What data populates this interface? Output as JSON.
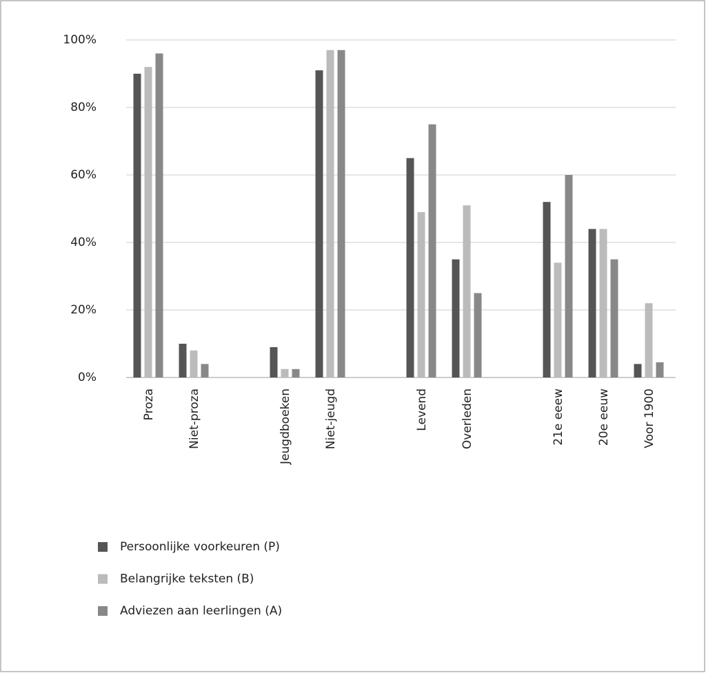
{
  "chart_data": {
    "type": "bar",
    "categories": [
      "Proza",
      "Niet-proza",
      null,
      "Jeugdboeken",
      "Niet-jeugd",
      null,
      "Levend",
      "Overleden",
      null,
      "21e eeew",
      "20e eeuw",
      "Voor 1900"
    ],
    "series": [
      {
        "name": "Persoonlijke voorkeuren (P)",
        "color": "#555555",
        "values": [
          90,
          10,
          null,
          9,
          91,
          null,
          65,
          35,
          null,
          52,
          44,
          4
        ]
      },
      {
        "name": "Belangrijke teksten (B)",
        "color": "#bbbbbb",
        "values": [
          92,
          8,
          null,
          2.5,
          97,
          null,
          49,
          51,
          null,
          34,
          44,
          22
        ]
      },
      {
        "name": "Adviezen aan leerlingen (A)",
        "color": "#888888",
        "values": [
          96,
          4,
          null,
          2.5,
          97,
          null,
          75,
          25,
          null,
          60,
          35,
          4.5
        ]
      }
    ],
    "ylim": [
      0,
      100
    ],
    "yticks": [
      {
        "value": 0,
        "label": "0%"
      },
      {
        "value": 20,
        "label": "20%"
      },
      {
        "value": 40,
        "label": "40%"
      },
      {
        "value": 60,
        "label": "60%"
      },
      {
        "value": 80,
        "label": "80%"
      },
      {
        "value": 100,
        "label": "100%"
      }
    ],
    "grid": true,
    "legend": "bottom"
  }
}
